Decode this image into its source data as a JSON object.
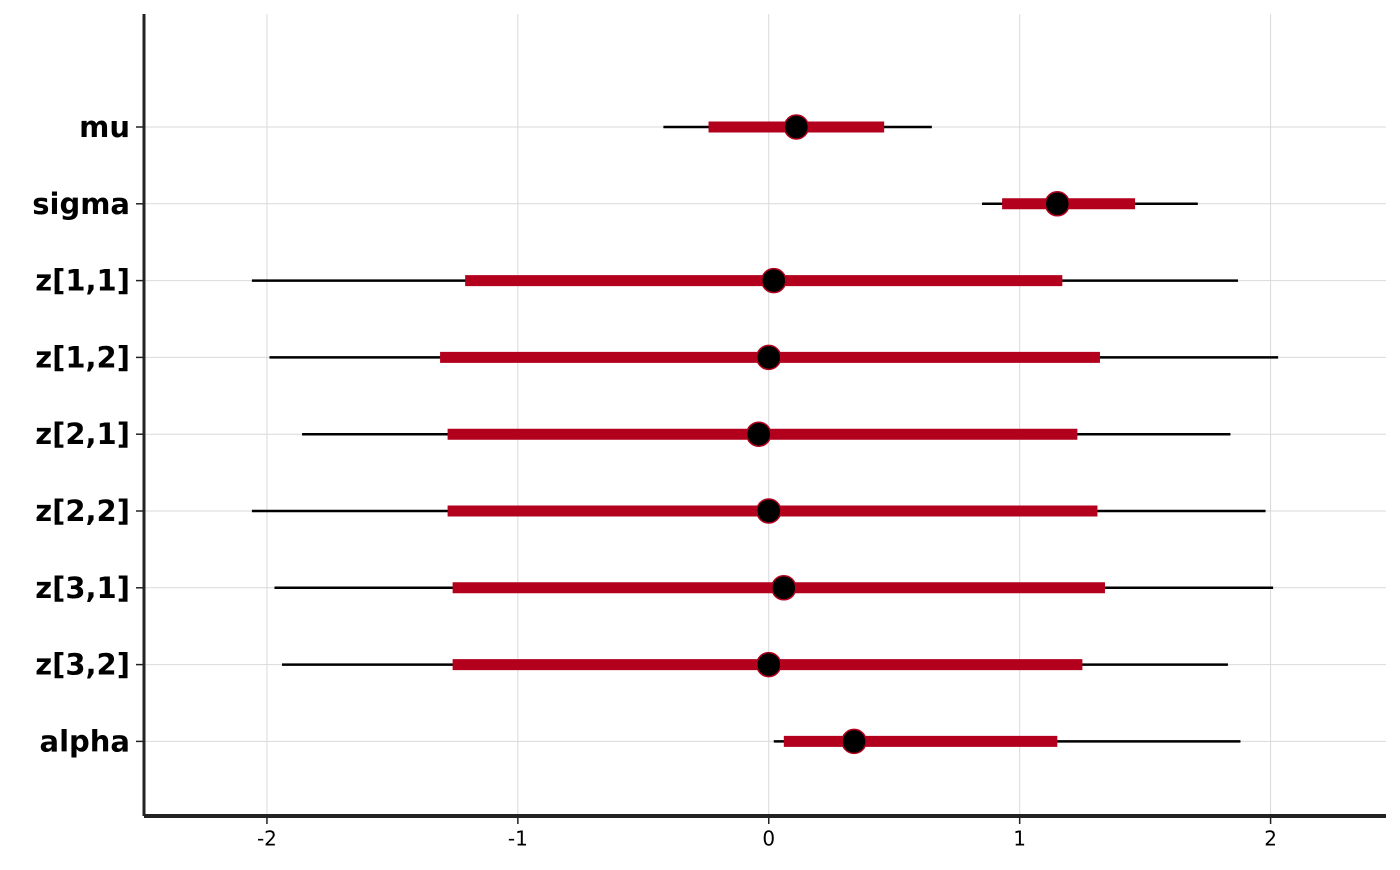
{
  "chart_data": {
    "type": "interval",
    "categories": [
      "mu",
      "sigma",
      "z[1,1]",
      "z[1,2]",
      "z[2,1]",
      "z[2,2]",
      "z[3,1]",
      "z[3,2]",
      "alpha"
    ],
    "outer_low": [
      -0.42,
      0.85,
      -2.06,
      -1.99,
      -1.86,
      -2.06,
      -1.97,
      -1.94,
      0.02
    ],
    "inner_low": [
      -0.24,
      0.93,
      -1.21,
      -1.31,
      -1.28,
      -1.28,
      -1.26,
      -1.26,
      0.06
    ],
    "median": [
      0.11,
      1.15,
      0.02,
      0.0,
      -0.04,
      0.0,
      0.06,
      0.0,
      0.34
    ],
    "inner_high": [
      0.46,
      1.46,
      1.17,
      1.32,
      1.23,
      1.31,
      1.34,
      1.25,
      1.15
    ],
    "outer_high": [
      0.65,
      1.71,
      1.87,
      2.03,
      1.84,
      1.98,
      2.01,
      1.83,
      1.88
    ],
    "inner_color": "#b2001d",
    "outer_color": "#000000",
    "point_color": "#000000",
    "xlim": [
      -2.49,
      2.46
    ],
    "xticks": [
      -2,
      -1,
      0,
      1,
      2
    ],
    "grid": true
  }
}
